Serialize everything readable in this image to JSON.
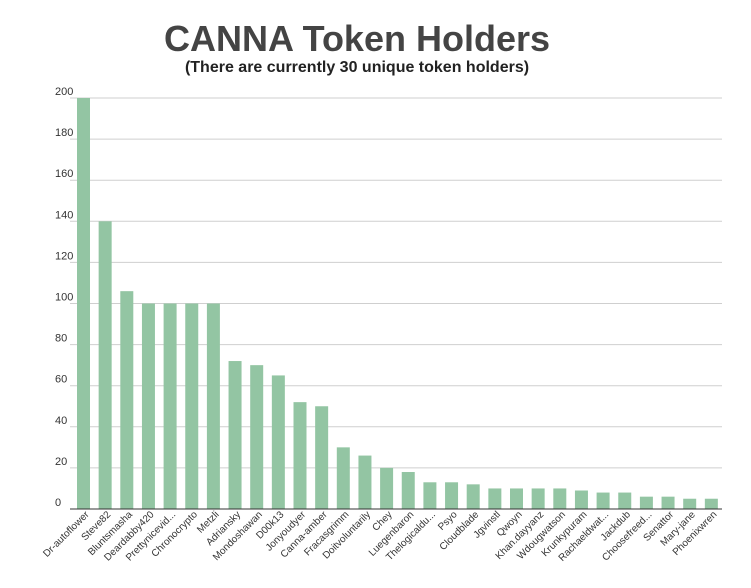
{
  "chart_data": {
    "type": "bar",
    "title": "CANNA Token Holders",
    "subtitle": "(There are currently 30 unique token holders)",
    "xlabel": "",
    "ylabel": "",
    "ylim": [
      0,
      200
    ],
    "yticks": [
      0,
      20,
      40,
      60,
      80,
      100,
      120,
      140,
      160,
      180,
      200
    ],
    "grid": true,
    "legend": "none",
    "bar_color": "#93c5a3",
    "categories": [
      "Dr-autoflower",
      "Steve82",
      "Bluntsmasha",
      "Deardabby420",
      "Prettynicevid...",
      "Chronocrypto",
      "Metzli",
      "Adriansky",
      "Mondoshawan",
      "D00k13",
      "Jonyoudyer",
      "Canna-amber",
      "Fracasgrimm",
      "Doitvoluntarily",
      "Chey",
      "Luegenbaron",
      "Thelogicaldu...",
      "Psyo",
      "Cloudblade",
      "Jgvinstl",
      "Qwoyn",
      "Khan.dayyanz",
      "Wdougwatson",
      "Krunkypuram",
      "Rachaeldwat...",
      "Jackdub",
      "Choosefreed...",
      "Senattor",
      "Mary-jane",
      "Phoenixwren"
    ],
    "values": [
      200,
      140,
      106,
      100,
      100,
      100,
      100,
      72,
      70,
      65,
      52,
      50,
      30,
      26,
      20,
      18,
      13,
      13,
      12,
      10,
      10,
      10,
      10,
      9,
      8,
      8,
      6,
      6,
      5,
      5
    ]
  }
}
